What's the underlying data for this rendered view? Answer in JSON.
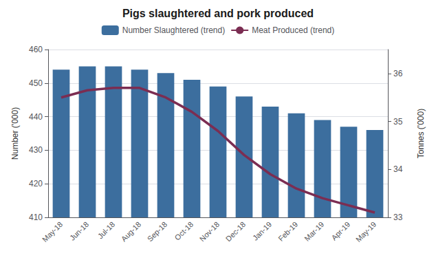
{
  "chart_data": {
    "type": "bar",
    "title": "Pigs slaughtered and pork produced",
    "categories": [
      "May-18",
      "Jun-18",
      "Jul-18",
      "Aug-18",
      "Sep-18",
      "Oct-18",
      "Nov-18",
      "Dec-18",
      "Jan-19",
      "Feb-19",
      "Mar-19",
      "Apr-19",
      "May-19"
    ],
    "series": [
      {
        "name": "Number Slaughtered (trend)",
        "type": "bar",
        "color": "#3C6E9E",
        "values": [
          454,
          455,
          455,
          454,
          453,
          451,
          449,
          446,
          443,
          441,
          439,
          437,
          436
        ]
      },
      {
        "name": "Meat Produced (trend)",
        "type": "line",
        "color": "#7B2D52",
        "axis": "y2",
        "values": [
          35.5,
          35.65,
          35.7,
          35.7,
          35.5,
          35.2,
          34.8,
          34.3,
          33.9,
          33.6,
          33.4,
          33.25,
          33.1
        ]
      }
    ],
    "ylabel": "Number ('000)",
    "y2label": "Tonnes ('000)",
    "ylim": [
      410,
      460
    ],
    "yticks": [
      410,
      420,
      430,
      440,
      450,
      460
    ],
    "y2lim": [
      33,
      36.5
    ],
    "y2ticks": [
      33,
      34,
      35,
      36
    ],
    "grid": true,
    "legend": "top"
  }
}
